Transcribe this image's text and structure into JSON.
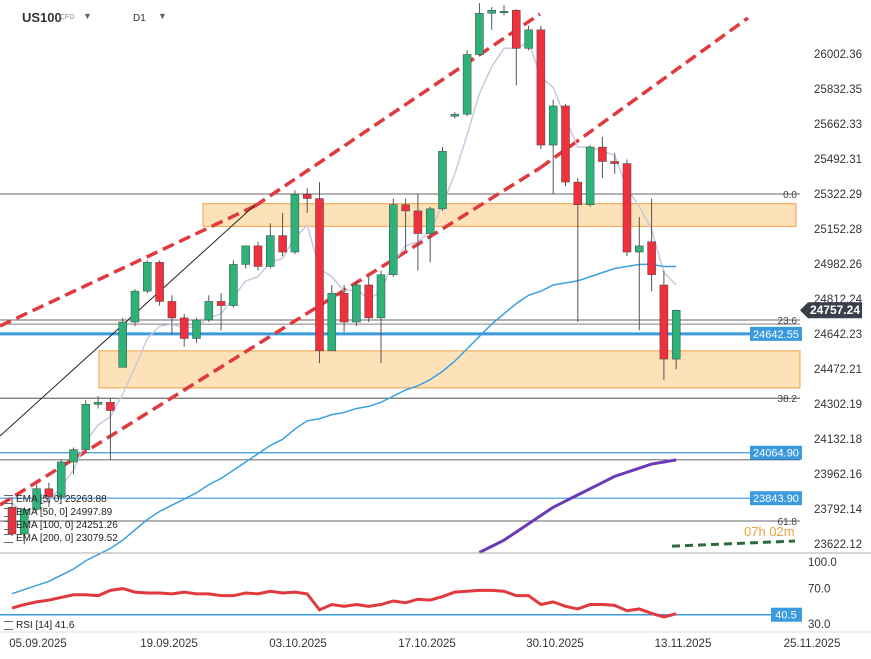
{
  "header": {
    "symbol": "US100",
    "instrument_type": "CFD",
    "timeframe": "D1"
  },
  "indicators": [
    {
      "label": "EMA [5, 0]",
      "value": "25263.88",
      "color": "#c8c8e0"
    },
    {
      "label": "EMA [50, 0]",
      "value": "24997.89",
      "color": "#3aa0e0"
    },
    {
      "label": "EMA [100, 0]",
      "value": "24251.26",
      "color": "#6a3ab8"
    },
    {
      "label": "EMA [200, 0]",
      "value": "23079.52",
      "color": "#2e6b3a"
    }
  ],
  "rsi": {
    "label": "RSI [14]",
    "value": "41.6",
    "current_tag": "40.5"
  },
  "countdown": "07h 02m",
  "colors": {
    "bull": "#2db37a",
    "bear": "#f0303c",
    "trend": "#e0393e",
    "zone_fill": "#fcd9a8",
    "zone_border": "#f0a040",
    "support": "#3a9ae0",
    "ema5": "#c8c8e0",
    "ema50": "#3aa0e0",
    "ema100": "#6a3ab8",
    "ema200": "#2e6b3a",
    "rsi": "#e0393e",
    "price_tag": "#3a3f4b"
  },
  "chart_data": {
    "type": "candlestick",
    "y_ticks": [
      "26002.36",
      "25832.35",
      "25662.33",
      "25492.31",
      "25322.29",
      "25152.28",
      "24982.26",
      "24812.24",
      "24642.23",
      "24472.21",
      "24302.19",
      "24132.18",
      "23962.16",
      "23792.14",
      "23622.12"
    ],
    "x_ticks": [
      "05.09.2025",
      "19.09.2025",
      "03.10.2025",
      "17.10.2025",
      "30.10.2025",
      "13.11.2025",
      "25.11.2025"
    ],
    "price_tags": [
      {
        "label": "24757.24",
        "value": 24757.24,
        "style": "current"
      },
      {
        "label": "24642.55",
        "value": 24642.55,
        "style": "blue"
      },
      {
        "label": "24064.90",
        "value": 24064.9,
        "style": "blue"
      },
      {
        "label": "23843.90",
        "value": 23843.9,
        "style": "blue"
      }
    ],
    "fib_levels": [
      {
        "label": "0.0",
        "value": 25322
      },
      {
        "label": "23.6",
        "value": 24710
      },
      {
        "label": "38.2",
        "value": 24330
      },
      {
        "label": "61.8",
        "value": 23733
      }
    ],
    "zones": [
      {
        "top": 25275,
        "bottom": 25165
      },
      {
        "top": 24560,
        "bottom": 24380
      }
    ],
    "support_levels": [
      24642.55,
      24064.9,
      23843.9
    ],
    "candles": [
      {
        "o": 23800,
        "h": 23850,
        "l": 23660,
        "c": 23670
      },
      {
        "o": 23670,
        "h": 23800,
        "l": 23620,
        "c": 23790
      },
      {
        "o": 23790,
        "h": 23910,
        "l": 23780,
        "c": 23890
      },
      {
        "o": 23890,
        "h": 23920,
        "l": 23800,
        "c": 23850
      },
      {
        "o": 23850,
        "h": 24030,
        "l": 23840,
        "c": 24020
      },
      {
        "o": 24020,
        "h": 24090,
        "l": 23960,
        "c": 24080
      },
      {
        "o": 24080,
        "h": 24320,
        "l": 24070,
        "c": 24300
      },
      {
        "o": 24300,
        "h": 24340,
        "l": 24280,
        "c": 24310
      },
      {
        "o": 24310,
        "h": 24330,
        "l": 24030,
        "c": 24270
      },
      {
        "o": 24480,
        "h": 24720,
        "l": 24480,
        "c": 24700
      },
      {
        "o": 24700,
        "h": 24860,
        "l": 24680,
        "c": 24850
      },
      {
        "o": 24850,
        "h": 25000,
        "l": 24840,
        "c": 24990
      },
      {
        "o": 24990,
        "h": 25000,
        "l": 24780,
        "c": 24800
      },
      {
        "o": 24800,
        "h": 24830,
        "l": 24640,
        "c": 24720
      },
      {
        "o": 24720,
        "h": 24740,
        "l": 24580,
        "c": 24620
      },
      {
        "o": 24620,
        "h": 24720,
        "l": 24600,
        "c": 24710
      },
      {
        "o": 24710,
        "h": 24830,
        "l": 24700,
        "c": 24800
      },
      {
        "o": 24800,
        "h": 24840,
        "l": 24660,
        "c": 24780
      },
      {
        "o": 24780,
        "h": 25000,
        "l": 24770,
        "c": 24980
      },
      {
        "o": 24980,
        "h": 25070,
        "l": 24960,
        "c": 25070
      },
      {
        "o": 25070,
        "h": 25090,
        "l": 24950,
        "c": 24970
      },
      {
        "o": 24970,
        "h": 25180,
        "l": 24960,
        "c": 25120
      },
      {
        "o": 25120,
        "h": 25230,
        "l": 25020,
        "c": 25040
      },
      {
        "o": 25040,
        "h": 25340,
        "l": 25030,
        "c": 25320
      },
      {
        "o": 25320,
        "h": 25350,
        "l": 25230,
        "c": 25300
      },
      {
        "o": 25300,
        "h": 25380,
        "l": 24500,
        "c": 24560
      },
      {
        "o": 24560,
        "h": 24880,
        "l": 24560,
        "c": 24840
      },
      {
        "o": 24840,
        "h": 24880,
        "l": 24650,
        "c": 24700
      },
      {
        "o": 24700,
        "h": 24900,
        "l": 24680,
        "c": 24880
      },
      {
        "o": 24880,
        "h": 24920,
        "l": 24700,
        "c": 24720
      },
      {
        "o": 24720,
        "h": 24950,
        "l": 24500,
        "c": 24930
      },
      {
        "o": 24930,
        "h": 25300,
        "l": 24920,
        "c": 25270
      },
      {
        "o": 25270,
        "h": 25300,
        "l": 25050,
        "c": 25240
      },
      {
        "o": 25240,
        "h": 25320,
        "l": 24950,
        "c": 25130
      },
      {
        "o": 25130,
        "h": 25260,
        "l": 24990,
        "c": 25250
      },
      {
        "o": 25250,
        "h": 25550,
        "l": 25240,
        "c": 25530
      },
      {
        "o": 25700,
        "h": 25720,
        "l": 25690,
        "c": 25710
      },
      {
        "o": 25710,
        "h": 26020,
        "l": 25700,
        "c": 26000
      },
      {
        "o": 26000,
        "h": 26250,
        "l": 25990,
        "c": 26200
      },
      {
        "o": 26200,
        "h": 26230,
        "l": 26120,
        "c": 26215
      },
      {
        "o": 26210,
        "h": 26240,
        "l": 26190,
        "c": 26210
      },
      {
        "o": 26215,
        "h": 26220,
        "l": 25850,
        "c": 26030
      },
      {
        "o": 26030,
        "h": 26140,
        "l": 26020,
        "c": 26120
      },
      {
        "o": 26120,
        "h": 26140,
        "l": 25540,
        "c": 25560
      },
      {
        "o": 25560,
        "h": 25780,
        "l": 25320,
        "c": 25750
      },
      {
        "o": 25750,
        "h": 25760,
        "l": 25360,
        "c": 25380
      },
      {
        "o": 25380,
        "h": 25400,
        "l": 24700,
        "c": 25270
      },
      {
        "o": 25270,
        "h": 25560,
        "l": 25260,
        "c": 25550
      },
      {
        "o": 25550,
        "h": 25600,
        "l": 25400,
        "c": 25480
      },
      {
        "o": 25480,
        "h": 25520,
        "l": 25420,
        "c": 25470
      },
      {
        "o": 25470,
        "h": 25490,
        "l": 25020,
        "c": 25040
      },
      {
        "o": 25040,
        "h": 25210,
        "l": 24660,
        "c": 25070
      },
      {
        "o": 25090,
        "h": 25300,
        "l": 24850,
        "c": 24930
      },
      {
        "o": 24880,
        "h": 24950,
        "l": 24420,
        "c": 24520
      },
      {
        "o": 24520,
        "h": 24760,
        "l": 24470,
        "c": 24757.24
      }
    ],
    "ema5": [
      23820,
      23770,
      23810,
      23830,
      23900,
      23980,
      24120,
      24200,
      24240,
      24350,
      24480,
      24620,
      24680,
      24690,
      24670,
      24680,
      24720,
      24740,
      24820,
      24900,
      24920,
      24990,
      25010,
      25110,
      25170,
      24960,
      24920,
      24850,
      24860,
      24810,
      24850,
      24990,
      25070,
      25090,
      25140,
      25270,
      25420,
      25610,
      25810,
      25940,
      26030,
      26030,
      26060,
      25890,
      25840,
      25690,
      25550,
      25550,
      25530,
      25510,
      25350,
      25260,
      25150,
      24940,
      24880
    ],
    "ema50": [
      23380,
      23400,
      23420,
      23440,
      23470,
      23500,
      23540,
      23570,
      23600,
      23640,
      23690,
      23740,
      23780,
      23810,
      23840,
      23870,
      23910,
      23940,
      23980,
      24020,
      24060,
      24100,
      24130,
      24180,
      24220,
      24230,
      24250,
      24260,
      24280,
      24290,
      24310,
      24340,
      24370,
      24390,
      24420,
      24460,
      24510,
      24570,
      24630,
      24690,
      24740,
      24790,
      24830,
      24850,
      24880,
      24890,
      24900,
      24920,
      24940,
      24960,
      24970,
      24980,
      24980,
      24970,
      24970
    ],
    "ema100": [
      null,
      null,
      null,
      null,
      null,
      null,
      null,
      null,
      null,
      null,
      null,
      null,
      null,
      null,
      null,
      null,
      null,
      null,
      null,
      null,
      null,
      null,
      null,
      null,
      null,
      null,
      null,
      null,
      null,
      null,
      null,
      null,
      null,
      null,
      null,
      null,
      null,
      null,
      23580,
      23610,
      23640,
      23680,
      23720,
      23760,
      23800,
      23830,
      23860,
      23890,
      23920,
      23950,
      23970,
      23990,
      24010,
      24020,
      24030
    ],
    "ema200_tail": [
      23640,
      23660
    ],
    "rsi_values": [
      48,
      52,
      55,
      57,
      60,
      63,
      63,
      62,
      68,
      70,
      66,
      65,
      65,
      64,
      66,
      64,
      64,
      62,
      62,
      65,
      64,
      67,
      65,
      66,
      64,
      46,
      52,
      50,
      52,
      50,
      52,
      56,
      54,
      58,
      57,
      61,
      66,
      67,
      68,
      68,
      67,
      62,
      62,
      52,
      55,
      50,
      47,
      52,
      52,
      51,
      45,
      47,
      42,
      38,
      41.6
    ],
    "rsi_ticks": [
      "100.0",
      "70.0",
      "30.0"
    ],
    "rsi_level": 40.5
  }
}
